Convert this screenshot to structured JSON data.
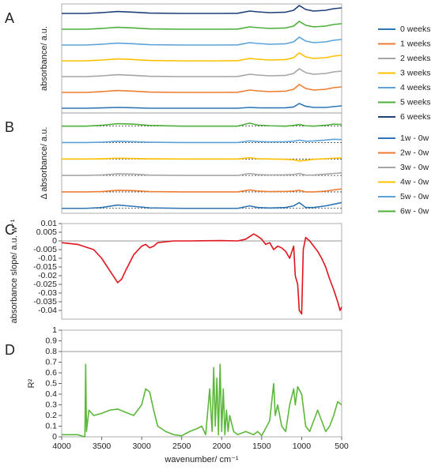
{
  "chart_data": [
    {
      "type": "line",
      "label": "A",
      "ylabel": "absorbance/ a.u.",
      "legend": "right",
      "xlim": [
        4000,
        500
      ],
      "ylim": [
        -0.3,
        6.6
      ],
      "x": [
        4000,
        3700,
        3500,
        3300,
        3100,
        2900,
        2500,
        2000,
        1800,
        1650,
        1550,
        1400,
        1200,
        1100,
        1030,
        950,
        850,
        700,
        600,
        500
      ],
      "series": [
        {
          "name": "0 weeks",
          "color": "#2e75b6",
          "values": [
            0,
            0,
            0.02,
            0.05,
            0.03,
            0,
            0,
            0,
            0,
            0.05,
            0.03,
            0.02,
            0.03,
            0.08,
            0.3,
            0.12,
            0.05,
            0.05,
            0.1,
            0.15
          ]
        },
        {
          "name": "1 weeks",
          "color": "#ed7d31",
          "values": [
            1,
            1,
            1.05,
            1.12,
            1.08,
            1.02,
            1,
            1,
            1.01,
            1.15,
            1.1,
            1.05,
            1.08,
            1.2,
            1.5,
            1.25,
            1.15,
            1.2,
            1.3,
            1.35
          ]
        },
        {
          "name": "2 weeks",
          "color": "#a5a5a5",
          "values": [
            2,
            2,
            2.05,
            2.12,
            2.08,
            2.02,
            2,
            2,
            2.01,
            2.15,
            2.1,
            2.05,
            2.08,
            2.2,
            2.5,
            2.25,
            2.15,
            2.2,
            2.3,
            2.35
          ]
        },
        {
          "name": "3 weeks",
          "color": "#ffc000",
          "values": [
            3,
            3,
            3.05,
            3.12,
            3.08,
            3.02,
            3,
            3,
            3.01,
            3.15,
            3.1,
            3.05,
            3.08,
            3.2,
            3.5,
            3.25,
            3.15,
            3.2,
            3.3,
            3.35
          ]
        },
        {
          "name": "4 weeks",
          "color": "#5ba3d9",
          "values": [
            4,
            4,
            4.05,
            4.12,
            4.08,
            4.02,
            4,
            4,
            4.01,
            4.15,
            4.1,
            4.05,
            4.08,
            4.2,
            4.5,
            4.25,
            4.15,
            4.2,
            4.3,
            4.35
          ]
        },
        {
          "name": "5 weeks",
          "color": "#4caf3a",
          "values": [
            5,
            5,
            5.05,
            5.12,
            5.08,
            5.02,
            5,
            5,
            5.01,
            5.15,
            5.1,
            5.05,
            5.08,
            5.2,
            5.5,
            5.25,
            5.15,
            5.2,
            5.3,
            5.35
          ]
        },
        {
          "name": "6 weeks",
          "color": "#1f3f7a",
          "values": [
            6,
            6,
            6.05,
            6.12,
            6.08,
            6.02,
            6,
            6,
            6.01,
            6.15,
            6.1,
            6.05,
            6.08,
            6.2,
            6.5,
            6.25,
            6.15,
            6.2,
            6.3,
            6.35
          ]
        }
      ]
    },
    {
      "type": "line",
      "label": "B",
      "ylabel": "Δ absorbance/ a.u.",
      "legend": "right",
      "baselines": true,
      "xlim": [
        4000,
        500
      ],
      "ylim": [
        -0.3,
        5.8
      ],
      "x": [
        4000,
        3700,
        3500,
        3300,
        3100,
        2900,
        2500,
        2000,
        1800,
        1650,
        1550,
        1400,
        1200,
        1100,
        1030,
        950,
        850,
        700,
        600,
        500
      ],
      "series": [
        {
          "name": "1w - 0w",
          "color": "#2e75b6",
          "values": [
            0,
            0,
            0.05,
            0.2,
            0.12,
            0.03,
            0,
            0,
            0,
            0.15,
            0.05,
            0.02,
            0.05,
            0.15,
            0.35,
            0.05,
            0.05,
            0.15,
            0.25,
            0.35
          ]
        },
        {
          "name": "2w - 0w",
          "color": "#ed7d31",
          "values": [
            1,
            1,
            1.02,
            1.1,
            1.08,
            1.02,
            1,
            1,
            1,
            1.12,
            1.05,
            1.02,
            1.03,
            1.05,
            1.1,
            1.0,
            1.0,
            1.05,
            1.12,
            1.18
          ]
        },
        {
          "name": "3w - 0w",
          "color": "#a5a5a5",
          "values": [
            2,
            2,
            2.03,
            2.1,
            2.08,
            2.02,
            2,
            2,
            2,
            2.12,
            2.05,
            2.03,
            2.04,
            2.06,
            2.12,
            2.02,
            2.03,
            2.08,
            2.12,
            2.16
          ]
        },
        {
          "name": "4w - 0w",
          "color": "#ffc000",
          "values": [
            3,
            3,
            3.01,
            3.05,
            3.03,
            3.01,
            3,
            3,
            3,
            3.08,
            3.02,
            3.0,
            2.98,
            2.95,
            2.88,
            2.92,
            2.98,
            3.02,
            3.05,
            3.06
          ]
        },
        {
          "name": "5w - 0w",
          "color": "#5ba3d9",
          "values": [
            4,
            4,
            4.02,
            4.08,
            4.05,
            4.02,
            4,
            4,
            4,
            4.1,
            4.06,
            4.04,
            4.05,
            4.08,
            4.15,
            4.08,
            4.1,
            4.15,
            4.2,
            4.18
          ]
        },
        {
          "name": "6w - 0w",
          "color": "#4caf3a",
          "values": [
            5,
            5,
            5.05,
            5.15,
            5.12,
            5.04,
            5,
            5,
            5,
            5.18,
            5.06,
            5.02,
            5.0,
            5.04,
            5.1,
            5.02,
            5.0,
            5.05,
            5.12,
            5.1
          ]
        }
      ]
    },
    {
      "type": "line",
      "label": "C",
      "ylabel": "absorbance slope/ a.u. w⁻¹",
      "color": "#e0141c",
      "reference_line": 0,
      "xlim": [
        4000,
        500
      ],
      "ylim": [
        -0.045,
        0.01
      ],
      "yticks": [
        0.01,
        0.005,
        0,
        -0.005,
        -0.01,
        -0.015,
        -0.02,
        -0.025,
        -0.03,
        -0.035,
        -0.04
      ],
      "x": [
        4000,
        3800,
        3600,
        3500,
        3400,
        3300,
        3250,
        3200,
        3100,
        3000,
        2950,
        2900,
        2850,
        2800,
        2600,
        2400,
        2000,
        1800,
        1700,
        1600,
        1560,
        1500,
        1450,
        1400,
        1350,
        1300,
        1250,
        1200,
        1150,
        1100,
        1080,
        1050,
        1030,
        1000,
        980,
        950,
        900,
        850,
        800,
        750,
        700,
        650,
        600,
        550,
        520,
        500
      ],
      "values": [
        -0.001,
        -0.002,
        -0.005,
        -0.01,
        -0.017,
        -0.024,
        -0.022,
        -0.017,
        -0.008,
        -0.003,
        -0.002,
        -0.004,
        -0.003,
        -0.001,
        0,
        0,
        0.0002,
        0,
        0.001,
        0.004,
        0.003,
        0.001,
        -0.002,
        -0.001,
        -0.005,
        -0.003,
        -0.004,
        -0.006,
        -0.01,
        -0.003,
        -0.02,
        -0.025,
        -0.04,
        -0.042,
        -0.005,
        0.002,
        0,
        -0.003,
        -0.006,
        -0.01,
        -0.015,
        -0.022,
        -0.028,
        -0.035,
        -0.04,
        -0.038
      ]
    },
    {
      "type": "line",
      "label": "D",
      "ylabel": "R²",
      "xlabel": "wavenumber/ cm⁻¹",
      "color": "#5cb83a",
      "reference_line": 0.8,
      "xlim": [
        4000,
        500
      ],
      "ylim": [
        0,
        1
      ],
      "yticks": [
        1,
        0.9,
        0.8,
        0.7,
        0.6,
        0.5,
        0.4,
        0.3,
        0.2,
        0.1,
        0
      ],
      "xticks": [
        4000,
        3500,
        3000,
        2500,
        2000,
        1500,
        1000,
        500
      ],
      "x": [
        4000,
        3800,
        3710,
        3700,
        3690,
        3660,
        3600,
        3500,
        3400,
        3300,
        3200,
        3100,
        3000,
        2950,
        2900,
        2850,
        2800,
        2700,
        2600,
        2500,
        2400,
        2300,
        2250,
        2200,
        2150,
        2120,
        2100,
        2080,
        2060,
        2040,
        2020,
        2000,
        1980,
        1960,
        1940,
        1920,
        1900,
        1850,
        1800,
        1700,
        1600,
        1550,
        1500,
        1400,
        1350,
        1330,
        1300,
        1250,
        1200,
        1150,
        1100,
        1080,
        1050,
        1000,
        950,
        900,
        850,
        800,
        750,
        700,
        650,
        600,
        550,
        500
      ],
      "values": [
        0.02,
        0.02,
        0.0,
        0.68,
        0.05,
        0.25,
        0.2,
        0.22,
        0.25,
        0.26,
        0.23,
        0.2,
        0.3,
        0.45,
        0.42,
        0.25,
        0.1,
        0.05,
        0.02,
        0.01,
        0.05,
        0.08,
        0.1,
        0.02,
        0.45,
        0.05,
        0.65,
        0.1,
        0.55,
        0.02,
        0.68,
        0.05,
        0.45,
        0.02,
        0.25,
        0.05,
        0.2,
        0.05,
        0.02,
        0.05,
        0.02,
        0.05,
        0.01,
        0.15,
        0.5,
        0.2,
        0.3,
        0.1,
        0.05,
        0.3,
        0.45,
        0.3,
        0.47,
        0.4,
        0.1,
        0.05,
        0.15,
        0.25,
        0.15,
        0.05,
        0.1,
        0.2,
        0.33,
        0.3
      ]
    }
  ]
}
